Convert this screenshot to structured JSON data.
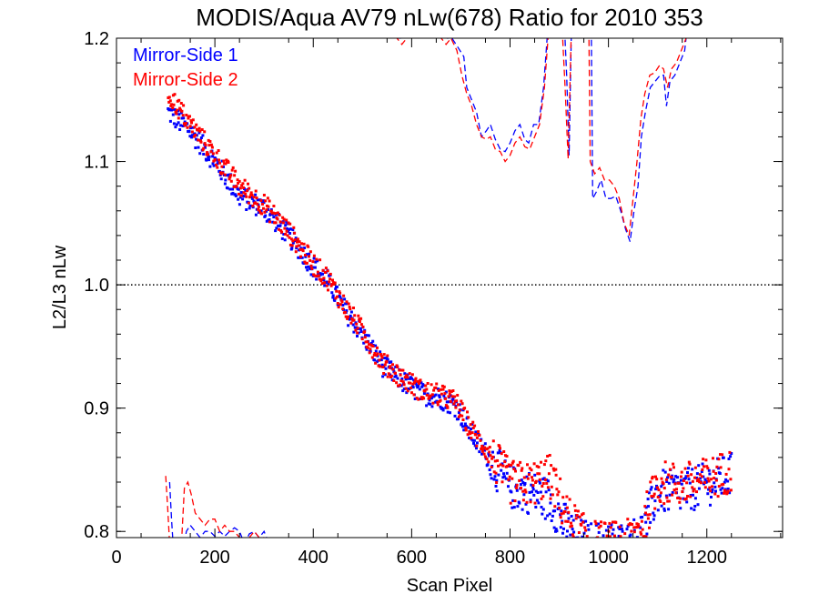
{
  "chart_data": {
    "type": "scatter",
    "title": "MODIS/Aqua AV79 nLw(678) Ratio for 2010 353",
    "xlabel": "Scan Pixel",
    "ylabel": "L2/L3 nLw",
    "xlim": [
      0,
      1354
    ],
    "ylim": [
      0.795,
      1.2
    ],
    "x_ticks": [
      0,
      200,
      400,
      600,
      800,
      1000,
      1200
    ],
    "x_tick_labels": [
      "0",
      "200",
      "400",
      "600",
      "800",
      "1000",
      "1200"
    ],
    "y_ticks": [
      0.8,
      0.9,
      1.0,
      1.1,
      1.2
    ],
    "y_tick_labels": [
      "0.8",
      "0.9",
      "1.0",
      "1.1",
      "1.2"
    ],
    "reference_line": {
      "y": 1.0,
      "style": "dotted",
      "color": "#000000"
    },
    "legend_position": "top-left",
    "series": [
      {
        "name": "Mirror-Side 1",
        "color": "#0000ff",
        "marker": "dot",
        "trend": [
          [
            105,
            1.14
          ],
          [
            150,
            1.125
          ],
          [
            200,
            1.1
          ],
          [
            250,
            1.072
          ],
          [
            300,
            1.062
          ],
          [
            350,
            1.04
          ],
          [
            400,
            1.015
          ],
          [
            430,
            1.003
          ],
          [
            460,
            0.982
          ],
          [
            500,
            0.96
          ],
          [
            540,
            0.935
          ],
          [
            580,
            0.922
          ],
          [
            620,
            0.912
          ],
          [
            660,
            0.908
          ],
          [
            690,
            0.902
          ],
          [
            720,
            0.88
          ],
          [
            760,
            0.858
          ],
          [
            800,
            0.836
          ],
          [
            840,
            0.832
          ],
          [
            880,
            0.826
          ],
          [
            920,
            0.8
          ],
          [
            960,
            0.79
          ],
          [
            1000,
            0.79
          ],
          [
            1040,
            0.79
          ],
          [
            1070,
            0.8
          ],
          [
            1100,
            0.832
          ],
          [
            1150,
            0.832
          ],
          [
            1200,
            0.838
          ],
          [
            1250,
            0.846
          ]
        ]
      },
      {
        "name": "Mirror-Side 2",
        "color": "#ff0000",
        "marker": "dot",
        "trend": [
          [
            105,
            1.155
          ],
          [
            150,
            1.13
          ],
          [
            200,
            1.105
          ],
          [
            250,
            1.08
          ],
          [
            300,
            1.065
          ],
          [
            350,
            1.043
          ],
          [
            400,
            1.017
          ],
          [
            430,
            1.005
          ],
          [
            460,
            0.985
          ],
          [
            500,
            0.962
          ],
          [
            540,
            0.937
          ],
          [
            580,
            0.925
          ],
          [
            620,
            0.914
          ],
          [
            660,
            0.91
          ],
          [
            690,
            0.905
          ],
          [
            720,
            0.883
          ],
          [
            760,
            0.862
          ],
          [
            800,
            0.84
          ],
          [
            840,
            0.838
          ],
          [
            880,
            0.845
          ],
          [
            920,
            0.81
          ],
          [
            960,
            0.792
          ],
          [
            1000,
            0.79
          ],
          [
            1040,
            0.792
          ],
          [
            1070,
            0.805
          ],
          [
            1100,
            0.84
          ],
          [
            1150,
            0.838
          ],
          [
            1200,
            0.842
          ],
          [
            1250,
            0.85
          ]
        ]
      }
    ],
    "dashed_lines": [
      {
        "series": "Mirror-Side 1",
        "color": "#0000ff",
        "segments": [
          [
            [
              562,
              1.21
            ],
            [
              572,
              1.2
            ],
            [
              582,
              1.2
            ],
            [
              592,
              1.204
            ],
            [
              602,
              1.215
            ]
          ],
          [
            [
              655,
              1.21
            ],
            [
              662,
              1.205
            ],
            [
              672,
              1.2
            ],
            [
              682,
              1.2
            ],
            [
              695,
              1.192
            ],
            [
              706,
              1.185
            ],
            [
              712,
              1.16
            ],
            [
              722,
              1.15
            ],
            [
              732,
              1.14
            ],
            [
              742,
              1.12
            ],
            [
              752,
              1.125
            ],
            [
              760,
              1.13
            ],
            [
              770,
              1.118
            ],
            [
              780,
              1.11
            ],
            [
              790,
              1.108
            ],
            [
              800,
              1.115
            ],
            [
              810,
              1.125
            ],
            [
              820,
              1.13
            ],
            [
              830,
              1.118
            ],
            [
              838,
              1.115
            ],
            [
              848,
              1.13
            ],
            [
              858,
              1.13
            ],
            [
              868,
              1.16
            ],
            [
              878,
              1.215
            ]
          ],
          [
            [
              910,
              1.215
            ],
            [
              915,
              1.17
            ],
            [
              920,
              1.105
            ],
            [
              925,
              1.215
            ]
          ],
          [
            [
              965,
              1.215
            ],
            [
              968,
              1.07
            ],
            [
              975,
              1.075
            ],
            [
              985,
              1.085
            ],
            [
              995,
              1.07
            ],
            [
              1005,
              1.07
            ],
            [
              1015,
              1.072
            ],
            [
              1025,
              1.06
            ],
            [
              1035,
              1.045
            ],
            [
              1044,
              1.035
            ],
            [
              1052,
              1.06
            ],
            [
              1060,
              1.08
            ],
            [
              1067,
              1.12
            ],
            [
              1075,
              1.14
            ],
            [
              1085,
              1.16
            ],
            [
              1095,
              1.165
            ],
            [
              1105,
              1.17
            ],
            [
              1112,
              1.17
            ],
            [
              1118,
              1.145
            ],
            [
              1125,
              1.165
            ],
            [
              1135,
              1.17
            ],
            [
              1145,
              1.18
            ],
            [
              1155,
              1.19
            ],
            [
              1162,
              1.215
            ]
          ],
          [
            [
              108,
              0.84
            ],
            [
              112,
              0.81
            ],
            [
              115,
              0.79
            ]
          ],
          [
            [
              138,
              0.79
            ],
            [
              142,
              0.8
            ],
            [
              150,
              0.805
            ],
            [
              160,
              0.8
            ],
            [
              170,
              0.795
            ],
            [
              180,
              0.8
            ],
            [
              190,
              0.8
            ],
            [
              200,
              0.796
            ],
            [
              210,
              0.8
            ],
            [
              220,
              0.796
            ],
            [
              230,
              0.8
            ],
            [
              240,
              0.803
            ],
            [
              250,
              0.8
            ],
            [
              260,
              0.79
            ],
            [
              270,
              0.798
            ],
            [
              280,
              0.8
            ],
            [
              290,
              0.795
            ],
            [
              300,
              0.8
            ],
            [
              310,
              0.79
            ]
          ]
        ]
      },
      {
        "series": "Mirror-Side 2",
        "color": "#ff0000",
        "segments": [
          [
            [
              560,
              1.21
            ],
            [
              570,
              1.2
            ],
            [
              580,
              1.195
            ],
            [
              590,
              1.2
            ],
            [
              600,
              1.21
            ]
          ],
          [
            [
              650,
              1.21
            ],
            [
              660,
              1.2
            ],
            [
              670,
              1.195
            ],
            [
              680,
              1.2
            ],
            [
              692,
              1.19
            ],
            [
              702,
              1.17
            ],
            [
              712,
              1.155
            ],
            [
              722,
              1.145
            ],
            [
              732,
              1.13
            ],
            [
              742,
              1.12
            ],
            [
              752,
              1.118
            ],
            [
              760,
              1.12
            ],
            [
              770,
              1.11
            ],
            [
              780,
              1.108
            ],
            [
              790,
              1.1
            ],
            [
              800,
              1.105
            ],
            [
              810,
              1.115
            ],
            [
              820,
              1.12
            ],
            [
              830,
              1.112
            ],
            [
              840,
              1.11
            ],
            [
              850,
              1.12
            ],
            [
              860,
              1.13
            ],
            [
              870,
              1.16
            ],
            [
              880,
              1.215
            ]
          ],
          [
            [
              905,
              1.215
            ],
            [
              912,
              1.16
            ],
            [
              918,
              1.102
            ],
            [
              925,
              1.215
            ]
          ],
          [
            [
              960,
              1.215
            ],
            [
              963,
              1.1
            ],
            [
              972,
              1.09
            ],
            [
              982,
              1.095
            ],
            [
              992,
              1.085
            ],
            [
              1002,
              1.085
            ],
            [
              1012,
              1.08
            ],
            [
              1022,
              1.07
            ],
            [
              1032,
              1.05
            ],
            [
              1042,
              1.04
            ],
            [
              1050,
              1.07
            ],
            [
              1058,
              1.1
            ],
            [
              1066,
              1.135
            ],
            [
              1074,
              1.155
            ],
            [
              1084,
              1.17
            ],
            [
              1094,
              1.172
            ],
            [
              1104,
              1.178
            ],
            [
              1112,
              1.175
            ],
            [
              1120,
              1.16
            ],
            [
              1128,
              1.175
            ],
            [
              1138,
              1.18
            ],
            [
              1148,
              1.19
            ],
            [
              1158,
              1.2
            ],
            [
              1165,
              1.215
            ]
          ],
          [
            [
              100,
              0.845
            ],
            [
              104,
              0.82
            ],
            [
              108,
              0.79
            ]
          ],
          [
            [
              132,
              0.79
            ],
            [
              138,
              0.835
            ],
            [
              145,
              0.84
            ],
            [
              152,
              0.83
            ],
            [
              160,
              0.815
            ],
            [
              170,
              0.81
            ],
            [
              180,
              0.805
            ],
            [
              190,
              0.81
            ],
            [
              200,
              0.81
            ],
            [
              210,
              0.8
            ],
            [
              220,
              0.805
            ],
            [
              230,
              0.8
            ],
            [
              240,
              0.8
            ],
            [
              250,
              0.795
            ],
            [
              260,
              0.79
            ],
            [
              270,
              0.795
            ],
            [
              280,
              0.8
            ],
            [
              290,
              0.795
            ],
            [
              300,
              0.795
            ],
            [
              310,
              0.79
            ]
          ]
        ]
      }
    ]
  }
}
